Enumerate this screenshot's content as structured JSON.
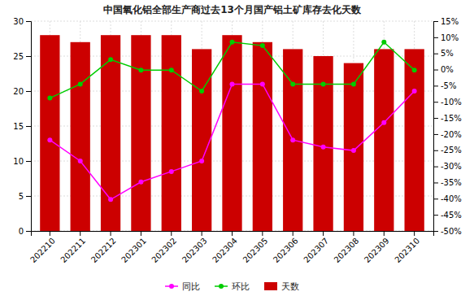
{
  "chart_data": {
    "type": "bar",
    "title": "中国氧化铝全部生产商过去13个月国产铝土矿库存去化天数",
    "categories": [
      "202210",
      "202211",
      "202212",
      "202301",
      "202302",
      "202303",
      "202304",
      "202305",
      "202306",
      "202307",
      "202308",
      "202309",
      "202310"
    ],
    "series": [
      {
        "name": "同比",
        "type": "line",
        "color": "#ff00ff",
        "marker": "circle",
        "values": [
          13,
          10,
          4.5,
          7,
          8.5,
          10,
          21,
          21,
          13,
          12,
          11.5,
          15.5,
          20
        ]
      },
      {
        "name": "环比",
        "type": "line",
        "color": "#00cc00",
        "marker": "circle",
        "values": [
          19,
          21,
          24.5,
          23,
          23,
          20,
          27,
          26.5,
          21,
          21,
          21,
          27,
          23
        ]
      },
      {
        "name": "天数",
        "type": "bar",
        "color": "#cc0000",
        "values": [
          28,
          27,
          28,
          28,
          28,
          26,
          28,
          27,
          26,
          25,
          24,
          26,
          26
        ]
      }
    ],
    "ylim": [
      0,
      30
    ],
    "yticks": [
      0,
      5,
      10,
      15,
      20,
      25,
      30
    ],
    "y2lim": [
      -0.5,
      0.15
    ],
    "y2ticks": [
      {
        "value": -0.5,
        "label": "-50%"
      },
      {
        "value": -0.45,
        "label": "-45%"
      },
      {
        "value": -0.4,
        "label": "-40%"
      },
      {
        "value": -0.35,
        "label": "-35%"
      },
      {
        "value": -0.3,
        "label": "-30%"
      },
      {
        "value": -0.25,
        "label": "-25%"
      },
      {
        "value": -0.2,
        "label": "-20%"
      },
      {
        "value": -0.15,
        "label": "-15%"
      },
      {
        "value": -0.1,
        "label": "-10%"
      },
      {
        "value": -0.05,
        "label": "-5%"
      },
      {
        "value": 0.0,
        "label": "0%"
      },
      {
        "value": 0.05,
        "label": "5%"
      },
      {
        "value": 0.1,
        "label": "10%"
      },
      {
        "value": 0.15,
        "label": "15%"
      }
    ],
    "grid": true,
    "legend": "bottom"
  }
}
